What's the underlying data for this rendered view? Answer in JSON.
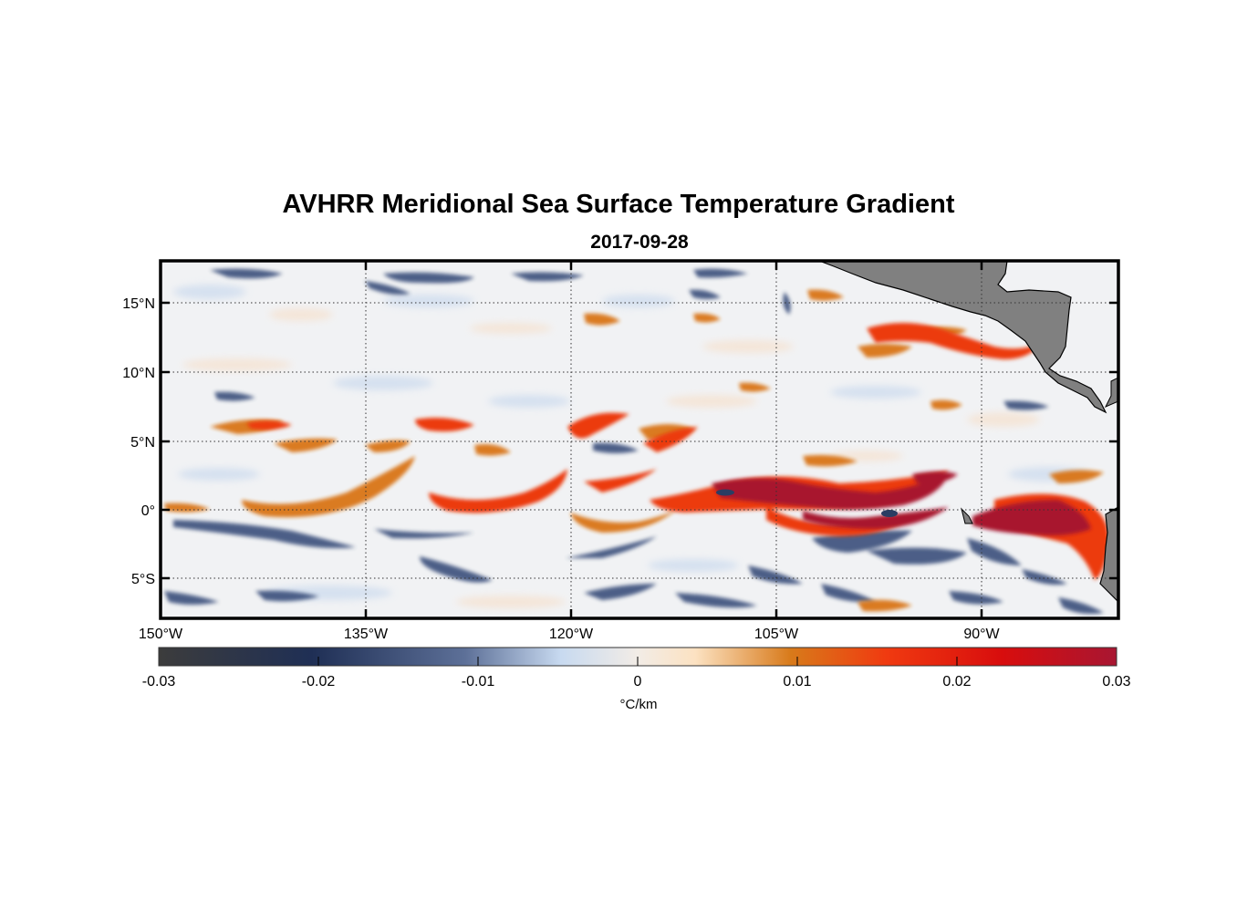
{
  "title": "AVHRR Meridional Sea Surface Temperature Gradient",
  "subtitle": "2017-09-28",
  "map": {
    "lon_range": [
      -150,
      -80
    ],
    "lat_range": [
      -8,
      18
    ],
    "lon_ticks": [
      {
        "value": -150,
        "label": "150°W"
      },
      {
        "value": -135,
        "label": "135°W"
      },
      {
        "value": -120,
        "label": "120°W"
      },
      {
        "value": -105,
        "label": "105°W"
      },
      {
        "value": -90,
        "label": "90°W"
      }
    ],
    "lat_ticks": [
      {
        "value": 15,
        "label": "15°N"
      },
      {
        "value": 10,
        "label": "10°N"
      },
      {
        "value": 5,
        "label": "5°N"
      },
      {
        "value": 0,
        "label": "0°"
      },
      {
        "value": -5,
        "label": "5°S"
      }
    ],
    "grid": "dotted",
    "land_color": "#808080"
  },
  "colorbar": {
    "ticks": [
      "-0.03",
      "-0.02",
      "-0.01",
      "0",
      "0.01",
      "0.02",
      "0.03"
    ],
    "unit": "°C/km",
    "colors": [
      "#3c3c3c",
      "#1f2f55",
      "#5d7098",
      "#c8daf0",
      "#f2ece6",
      "#fce2c2",
      "#d87a1a",
      "#f03a10",
      "#d80d0d",
      "#a81632"
    ]
  }
}
